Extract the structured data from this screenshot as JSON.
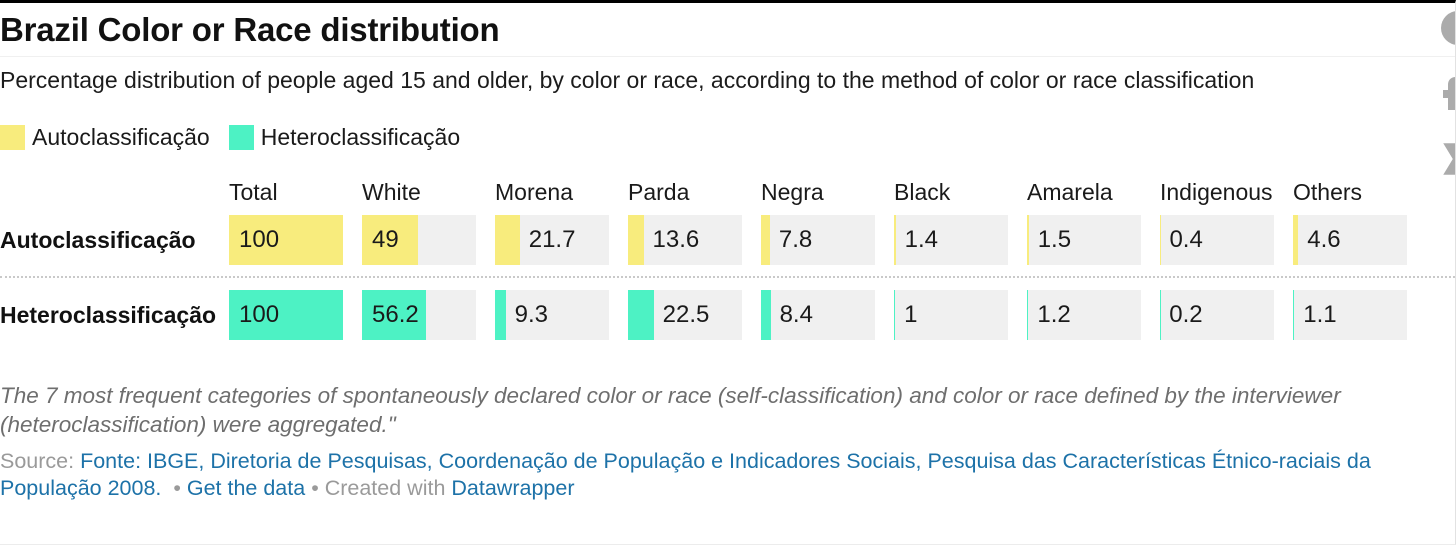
{
  "header": {
    "title": "Brazil Color or Race distribution",
    "subtitle": "Percentage distribution of people aged 15 and older, by color or race, according to the method of color or race classification"
  },
  "legend": {
    "items": [
      {
        "label": "Autoclassificação",
        "color": "#F8EC7D"
      },
      {
        "label": "Heteroclassificação",
        "color": "#4DF2C4"
      }
    ]
  },
  "colors": {
    "bar_yellow": "#F8EC7D",
    "bar_teal": "#4DF2C4",
    "cell_background": "#F0F0F0",
    "link_blue": "#1D72A8",
    "muted_gray": "#9A9A9A",
    "note_gray": "#6E6E6E"
  },
  "chart_data": {
    "type": "bar",
    "variant": "bar-column-table",
    "title": "Brazil Color or Race distribution",
    "categories": [
      "Total",
      "White",
      "Morena",
      "Parda",
      "Negra",
      "Black",
      "Amarela",
      "Indigenous",
      "Others"
    ],
    "series": [
      {
        "name": "Autoclassificação",
        "color": "#F8EC7D",
        "values": [
          100,
          49,
          21.7,
          13.6,
          7.8,
          1.4,
          1.5,
          0.4,
          4.6
        ]
      },
      {
        "name": "Heteroclassificação",
        "color": "#4DF2C4",
        "values": [
          100,
          56.2,
          9.3,
          22.5,
          8.4,
          1,
          1.2,
          0.2,
          1.1
        ]
      }
    ],
    "value_scale": [
      0,
      100
    ],
    "unit": "percent",
    "legend_position": "top-left",
    "grid": false
  },
  "note": "The 7 most frequent categories of spontaneously declared color or race (self-classification) and color or race defined by the interviewer (heteroclassification) were aggregated.\"",
  "source": {
    "prefix": "Source:",
    "source_link": "Fonte: IBGE, Diretoria de Pesquisas, Coordenação de População e Indicadores Sociais, Pesquisa das Características Étnico-raciais da População 2008.",
    "bullet": "•",
    "get_the_data": "Get the data",
    "created_with": "Created with",
    "datawrapper": "Datawrapper"
  },
  "share_icons": [
    "info-circle-icon",
    "facebook-icon",
    "x-twitter-icon"
  ]
}
